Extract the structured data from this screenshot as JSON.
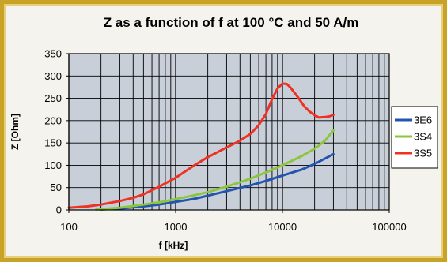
{
  "chart_data": {
    "type": "line",
    "title": "Z as a function of f at 100 °C and 50 A/m",
    "xlabel": "f [kHz]",
    "ylabel": "Z [Ohm]",
    "xscale": "log",
    "xlim": [
      100,
      100000
    ],
    "ylim": [
      0,
      350
    ],
    "x_ticks": [
      "100",
      "1000",
      "10000",
      "100000"
    ],
    "y_ticks": [
      "0",
      "50",
      "100",
      "150",
      "200",
      "250",
      "300",
      "350"
    ],
    "grid": true,
    "legend_position": "right",
    "series": [
      {
        "name": "3E6",
        "color": "#2255b0",
        "points": [
          [
            200,
            1
          ],
          [
            300,
            3
          ],
          [
            500,
            8
          ],
          [
            700,
            12
          ],
          [
            1000,
            18
          ],
          [
            1500,
            25
          ],
          [
            2000,
            32
          ],
          [
            3000,
            42
          ],
          [
            5000,
            55
          ],
          [
            7000,
            65
          ],
          [
            10000,
            77
          ],
          [
            15000,
            90
          ],
          [
            20000,
            103
          ],
          [
            25000,
            115
          ],
          [
            30000,
            125
          ]
        ]
      },
      {
        "name": "3S4",
        "color": "#8cc63f",
        "points": [
          [
            180,
            1
          ],
          [
            300,
            5
          ],
          [
            500,
            12
          ],
          [
            700,
            17
          ],
          [
            1000,
            24
          ],
          [
            1500,
            33
          ],
          [
            2000,
            40
          ],
          [
            3000,
            52
          ],
          [
            5000,
            70
          ],
          [
            7000,
            84
          ],
          [
            10000,
            100
          ],
          [
            15000,
            120
          ],
          [
            20000,
            137
          ],
          [
            25000,
            155
          ],
          [
            30000,
            178
          ]
        ]
      },
      {
        "name": "3S5",
        "color": "#ee3124",
        "points": [
          [
            100,
            5
          ],
          [
            150,
            8
          ],
          [
            200,
            12
          ],
          [
            300,
            20
          ],
          [
            400,
            27
          ],
          [
            500,
            35
          ],
          [
            700,
            52
          ],
          [
            1000,
            72
          ],
          [
            1500,
            100
          ],
          [
            2000,
            118
          ],
          [
            3000,
            140
          ],
          [
            4000,
            155
          ],
          [
            5000,
            170
          ],
          [
            6000,
            190
          ],
          [
            7000,
            215
          ],
          [
            8000,
            248
          ],
          [
            9000,
            272
          ],
          [
            10000,
            283
          ],
          [
            11000,
            282
          ],
          [
            12000,
            273
          ],
          [
            14000,
            252
          ],
          [
            16000,
            232
          ],
          [
            18000,
            220
          ],
          [
            20000,
            212
          ],
          [
            22000,
            207
          ],
          [
            25000,
            208
          ],
          [
            28000,
            210
          ],
          [
            30000,
            213
          ]
        ]
      }
    ]
  }
}
